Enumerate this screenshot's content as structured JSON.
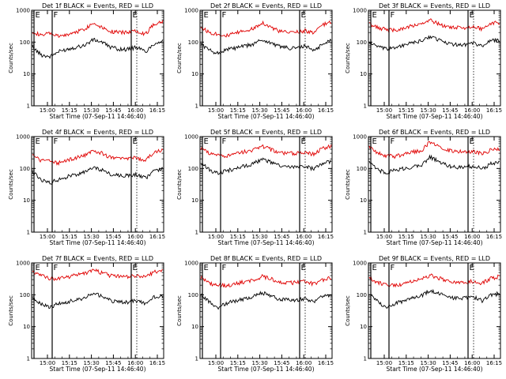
{
  "colors": {
    "background": "#ffffff",
    "events": "#000000",
    "lld": "#e00000",
    "frame": "#000000",
    "marker": "#000000"
  },
  "chart_data": [
    {
      "type": "line",
      "title": "Det 1f BLACK = Events, RED = LLD",
      "xlabel": "Start Time (07-Sep-11 14:46:40)",
      "ylabel": "Counts/sec",
      "yscale": "log",
      "ylim": [
        1,
        1000
      ],
      "yticks": [
        "1",
        "10",
        "100",
        "1000"
      ],
      "xticks": [
        "15:00",
        "15:15",
        "15:30",
        "15:45",
        "16:00",
        "16:15"
      ],
      "markers": [
        "E",
        "F",
        "E"
      ],
      "series": [
        {
          "values": [
            220,
            160,
            190,
            150,
            170,
            210,
            260,
            400,
            300,
            220,
            200,
            210,
            230,
            180,
            380,
            450
          ]
        },
        {
          "values": [
            70,
            40,
            35,
            50,
            60,
            70,
            80,
            120,
            100,
            70,
            60,
            60,
            70,
            50,
            90,
            110
          ]
        }
      ]
    },
    {
      "type": "line",
      "title": "Det 2f BLACK = Events, RED = LLD",
      "xlabel": "Start Time (07-Sep-11 14:46:40)",
      "ylabel": "Counts/sec",
      "yscale": "log",
      "ylim": [
        1,
        1000
      ],
      "yticks": [
        "1",
        "10",
        "100",
        "1000"
      ],
      "xticks": [
        "15:00",
        "15:15",
        "15:30",
        "15:45",
        "16:00",
        "16:15"
      ],
      "markers": [
        "E",
        "F",
        "E"
      ],
      "series": [
        {
          "values": [
            300,
            200,
            180,
            160,
            190,
            230,
            260,
            420,
            300,
            220,
            200,
            210,
            230,
            190,
            350,
            420
          ]
        },
        {
          "values": [
            90,
            55,
            45,
            60,
            65,
            75,
            85,
            120,
            95,
            75,
            65,
            65,
            75,
            55,
            85,
            120
          ]
        }
      ]
    },
    {
      "type": "line",
      "title": "Det 3f BLACK = Events, RED = LLD",
      "xlabel": "Start Time (07-Sep-11 14:46:40)",
      "ylabel": "Counts/sec",
      "yscale": "log",
      "ylim": [
        1,
        1000
      ],
      "yticks": [
        "1",
        "10",
        "100",
        "1000"
      ],
      "xticks": [
        "15:00",
        "15:15",
        "15:30",
        "15:45",
        "16:00",
        "16:15"
      ],
      "markers": [
        "E",
        "F",
        "E"
      ],
      "series": [
        {
          "values": [
            380,
            280,
            250,
            240,
            270,
            330,
            360,
            480,
            380,
            300,
            290,
            290,
            300,
            260,
            390,
            420
          ]
        },
        {
          "values": [
            100,
            70,
            60,
            70,
            80,
            95,
            110,
            150,
            120,
            90,
            85,
            85,
            95,
            75,
            110,
            120
          ]
        }
      ]
    },
    {
      "type": "line",
      "title": "Det 4f BLACK = Events, RED = LLD",
      "xlabel": "Start Time (07-Sep-11 14:46:40)",
      "ylabel": "Counts/sec",
      "yscale": "log",
      "ylim": [
        1,
        1000
      ],
      "yticks": [
        "1",
        "10",
        "100",
        "1000"
      ],
      "xticks": [
        "15:00",
        "15:15",
        "15:30",
        "15:45",
        "16:00",
        "16:15"
      ],
      "markers": [
        "E",
        "F",
        "E"
      ],
      "series": [
        {
          "values": [
            260,
            180,
            170,
            150,
            180,
            220,
            250,
            380,
            300,
            220,
            200,
            200,
            220,
            180,
            320,
            380
          ]
        },
        {
          "values": [
            80,
            45,
            35,
            45,
            55,
            65,
            75,
            110,
            90,
            65,
            60,
            60,
            65,
            50,
            85,
            100
          ]
        }
      ]
    },
    {
      "type": "line",
      "title": "Det 5f BLACK = Events, RED = LLD",
      "xlabel": "Start Time (07-Sep-11 14:46:40)",
      "ylabel": "Counts/sec",
      "yscale": "log",
      "ylim": [
        1,
        1000
      ],
      "yticks": [
        "1",
        "10",
        "100",
        "1000"
      ],
      "xticks": [
        "15:00",
        "15:15",
        "15:30",
        "15:45",
        "16:00",
        "16:15"
      ],
      "markers": [
        "E",
        "F",
        "E"
      ],
      "series": [
        {
          "values": [
            420,
            300,
            260,
            240,
            280,
            340,
            380,
            520,
            400,
            320,
            300,
            300,
            320,
            280,
            440,
            500
          ]
        },
        {
          "values": [
            150,
            90,
            70,
            85,
            100,
            120,
            140,
            200,
            160,
            120,
            110,
            110,
            120,
            95,
            150,
            160
          ]
        }
      ]
    },
    {
      "type": "line",
      "title": "Det 6f BLACK = Events, RED = LLD",
      "xlabel": "Start Time (07-Sep-11 14:46:40)",
      "ylabel": "Counts/sec",
      "yscale": "log",
      "ylim": [
        1,
        1000
      ],
      "yticks": [
        "1",
        "10",
        "100",
        "1000"
      ],
      "xticks": [
        "15:00",
        "15:15",
        "15:30",
        "15:45",
        "16:00",
        "16:15"
      ],
      "markers": [
        "E",
        "F",
        "E"
      ],
      "series": [
        {
          "values": [
            500,
            300,
            250,
            240,
            280,
            330,
            360,
            700,
            520,
            380,
            340,
            330,
            340,
            300,
            380,
            420
          ]
        },
        {
          "values": [
            150,
            90,
            75,
            90,
            100,
            115,
            130,
            230,
            170,
            120,
            110,
            110,
            120,
            100,
            140,
            150
          ]
        }
      ]
    },
    {
      "type": "line",
      "title": "Det 7f BLACK = Events, RED = LLD",
      "xlabel": "Start Time (07-Sep-11 14:46:40)",
      "ylabel": "Counts/sec",
      "yscale": "log",
      "ylim": [
        1,
        1000
      ],
      "yticks": [
        "1",
        "10",
        "100",
        "1000"
      ],
      "xticks": [
        "15:00",
        "15:15",
        "15:30",
        "15:45",
        "16:00",
        "16:15"
      ],
      "markers": [
        "E",
        "F",
        "E"
      ],
      "series": [
        {
          "values": [
            550,
            400,
            330,
            320,
            360,
            420,
            460,
            600,
            480,
            400,
            380,
            380,
            400,
            360,
            520,
            600
          ]
        },
        {
          "values": [
            90,
            50,
            40,
            55,
            60,
            70,
            80,
            110,
            90,
            65,
            60,
            60,
            65,
            55,
            85,
            90
          ]
        }
      ]
    },
    {
      "type": "line",
      "title": "Det 8f BLACK = Events, RED = LLD",
      "xlabel": "Start Time (07-Sep-11 14:46:40)",
      "ylabel": "Counts/sec",
      "yscale": "log",
      "ylim": [
        1,
        1000
      ],
      "yticks": [
        "1",
        "10",
        "100",
        "1000"
      ],
      "xticks": [
        "15:00",
        "15:15",
        "15:30",
        "15:45",
        "16:00",
        "16:15"
      ],
      "markers": [
        "E",
        "F",
        "E"
      ],
      "series": [
        {
          "values": [
            350,
            230,
            200,
            200,
            220,
            260,
            280,
            380,
            320,
            260,
            240,
            240,
            260,
            220,
            300,
            340
          ]
        },
        {
          "values": [
            100,
            60,
            40,
            55,
            65,
            75,
            85,
            120,
            95,
            75,
            70,
            70,
            75,
            60,
            90,
            100
          ]
        }
      ]
    },
    {
      "type": "line",
      "title": "Det 9f BLACK = Events, RED = LLD",
      "xlabel": "Start Time (07-Sep-11 14:46:40)",
      "ylabel": "Counts/sec",
      "yscale": "log",
      "ylim": [
        1,
        1000
      ],
      "yticks": [
        "1",
        "10",
        "100",
        "1000"
      ],
      "xticks": [
        "15:00",
        "15:15",
        "15:30",
        "15:45",
        "16:00",
        "16:15"
      ],
      "markers": [
        "E",
        "F",
        "E"
      ],
      "series": [
        {
          "values": [
            360,
            240,
            200,
            200,
            220,
            270,
            300,
            420,
            340,
            270,
            250,
            250,
            270,
            230,
            330,
            380
          ]
        },
        {
          "values": [
            110,
            60,
            40,
            55,
            65,
            80,
            95,
            140,
            110,
            85,
            80,
            80,
            85,
            65,
            100,
            110
          ]
        }
      ]
    }
  ]
}
